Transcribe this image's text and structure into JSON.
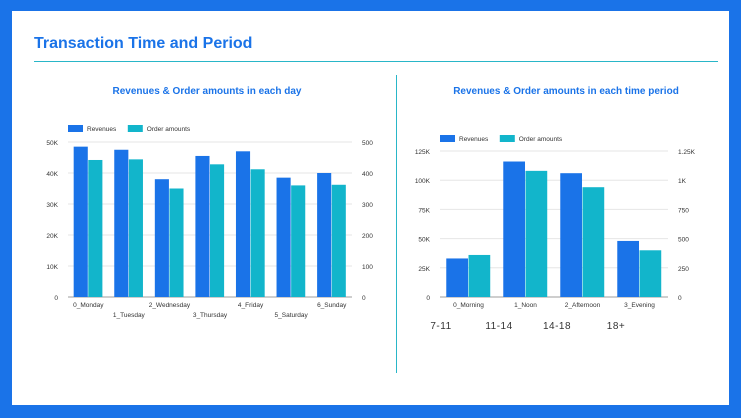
{
  "page_title": "Transaction Time and Period",
  "colors": {
    "revenues": "#1a73e8",
    "order_amounts": "#12b5cb",
    "accent": "#1a73e8",
    "rule": "#29b6c8"
  },
  "period_labels": [
    "7-11",
    "11-14",
    "14-18",
    "18+"
  ],
  "chart_data": [
    {
      "type": "bar",
      "title": "Revenues & Order amounts in each day",
      "legend_position": "top-left",
      "grid": true,
      "categories": [
        "0_Monday",
        "1_Tuesday",
        "2_Wednesday",
        "3_Thursday",
        "4_Friday",
        "5_Saturday",
        "6_Sunday"
      ],
      "series": [
        {
          "name": "Revenues",
          "axis": "left",
          "values": [
            48500,
            47500,
            38000,
            45500,
            47000,
            38500,
            40000
          ]
        },
        {
          "name": "Order amounts",
          "axis": "right",
          "values": [
            442,
            444,
            350,
            428,
            412,
            360,
            362
          ]
        }
      ],
      "y_left": {
        "min": 0,
        "max": 50000,
        "ticks": [
          0,
          10000,
          20000,
          30000,
          40000,
          50000
        ],
        "tick_labels": [
          "0",
          "10K",
          "20K",
          "30K",
          "40K",
          "50K"
        ]
      },
      "y_right": {
        "min": 0,
        "max": 500,
        "ticks": [
          0,
          100,
          200,
          300,
          400,
          500
        ],
        "tick_labels": [
          "0",
          "100",
          "200",
          "300",
          "400",
          "500"
        ]
      }
    },
    {
      "type": "bar",
      "title": "Revenues & Order amounts in each time period",
      "legend_position": "top-left",
      "grid": true,
      "categories": [
        "0_Morning",
        "1_Noon",
        "2_Afternoon",
        "3_Evening"
      ],
      "series": [
        {
          "name": "Revenues",
          "axis": "left",
          "values": [
            33000,
            116000,
            106000,
            48000
          ]
        },
        {
          "name": "Order amounts",
          "axis": "right",
          "values": [
            360,
            1080,
            940,
            400
          ]
        }
      ],
      "y_left": {
        "min": 0,
        "max": 125000,
        "ticks": [
          0,
          25000,
          50000,
          75000,
          100000,
          125000
        ],
        "tick_labels": [
          "0",
          "25K",
          "50K",
          "75K",
          "100K",
          "125K"
        ]
      },
      "y_right": {
        "min": 0,
        "max": 1250,
        "ticks": [
          0,
          250,
          500,
          750,
          1000,
          1250
        ],
        "tick_labels": [
          "0",
          "250",
          "500",
          "750",
          "1K",
          "1.25K"
        ]
      }
    }
  ]
}
